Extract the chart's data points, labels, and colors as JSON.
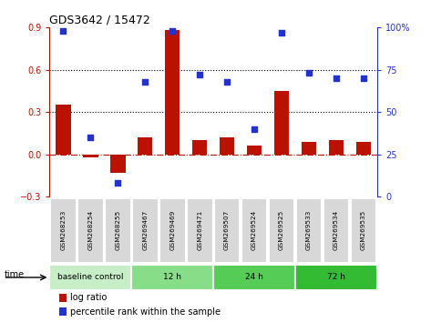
{
  "title": "GDS3642 / 15472",
  "samples": [
    "GSM268253",
    "GSM268254",
    "GSM268255",
    "GSM269467",
    "GSM269469",
    "GSM269471",
    "GSM269507",
    "GSM269524",
    "GSM269525",
    "GSM269533",
    "GSM269534",
    "GSM269535"
  ],
  "log_ratio": [
    0.35,
    -0.02,
    -0.13,
    0.12,
    0.88,
    0.1,
    0.12,
    0.06,
    0.45,
    0.09,
    0.1,
    0.09
  ],
  "percentile_rank": [
    98,
    35,
    8,
    68,
    98,
    72,
    68,
    40,
    97,
    73,
    70,
    70
  ],
  "groups": [
    {
      "label": "baseline control",
      "start": 0,
      "end": 3,
      "color": "#c8eec8"
    },
    {
      "label": "12 h",
      "start": 3,
      "end": 6,
      "color": "#88dd88"
    },
    {
      "label": "24 h",
      "start": 6,
      "end": 9,
      "color": "#55cc55"
    },
    {
      "label": "72 h",
      "start": 9,
      "end": 12,
      "color": "#33bb33"
    }
  ],
  "bar_color": "#bb1100",
  "dot_color": "#2233cc",
  "ylim_left": [
    -0.3,
    0.9
  ],
  "ylim_right": [
    0,
    100
  ],
  "yticks_left": [
    -0.3,
    0.0,
    0.3,
    0.6,
    0.9
  ],
  "yticks_right": [
    0,
    25,
    50,
    75,
    100
  ],
  "hlines": [
    0.3,
    0.6
  ],
  "legend_labels": [
    "log ratio",
    "percentile rank within the sample"
  ],
  "legend_colors": [
    "#bb1100",
    "#2233cc"
  ]
}
